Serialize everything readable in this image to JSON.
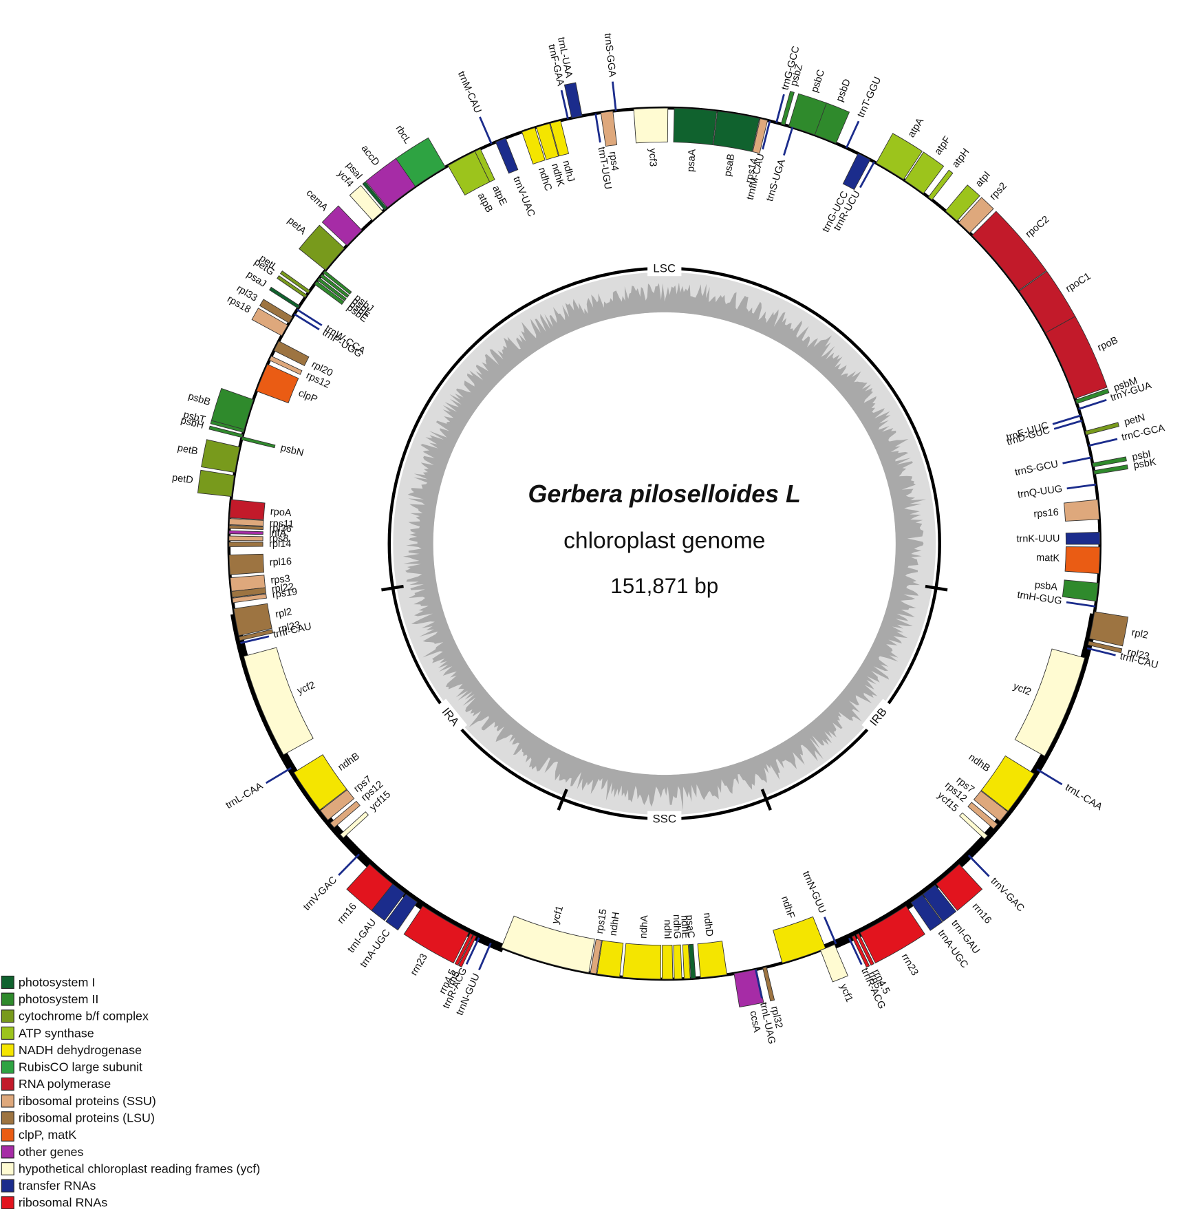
{
  "title": {
    "organism": "Gerbera piloselloides L",
    "description": "chloroplast genome",
    "length": "151,871 bp"
  },
  "regions": [
    "LSC",
    "IRA",
    "SSC",
    "IRB"
  ],
  "legend": [
    {
      "label": "photosystem I",
      "color": "#10622e"
    },
    {
      "label": "photosystem II",
      "color": "#2f8a2c"
    },
    {
      "label": "cytochrome b/f complex",
      "color": "#789a1c"
    },
    {
      "label": "ATP synthase",
      "color": "#9cc41c"
    },
    {
      "label": "NADH dehydrogenase",
      "color": "#f4e500"
    },
    {
      "label": "RubisCO large subunit",
      "color": "#2ea342"
    },
    {
      "label": "RNA polymerase",
      "color": "#c21a2a"
    },
    {
      "label": "ribosomal proteins (SSU)",
      "color": "#dea87c"
    },
    {
      "label": "ribosomal proteins (LSU)",
      "color": "#9d7441"
    },
    {
      "label": "clpP, matK",
      "color": "#ea5c14"
    },
    {
      "label": "other genes",
      "color": "#a62ca6"
    },
    {
      "label": "hypothetical chloroplast reading frames (ycf)",
      "color": "#fffbd2"
    },
    {
      "label": "transfer RNAs",
      "color": "#1b2c8c"
    },
    {
      "label": "ribosomal RNAs",
      "color": "#e2141e"
    }
  ],
  "genes": [
    {
      "name": "trnH-GUG",
      "group": 12
    },
    {
      "name": "psbA",
      "group": 1
    },
    {
      "name": "matK",
      "group": 9
    },
    {
      "name": "trnK-UUU",
      "group": 12
    },
    {
      "name": "rps16",
      "group": 7
    },
    {
      "name": "trnQ-UUG",
      "group": 12
    },
    {
      "name": "psbK",
      "group": 1
    },
    {
      "name": "psbI",
      "group": 1
    },
    {
      "name": "trnS-GCU",
      "group": 12
    },
    {
      "name": "trnC-GCA",
      "group": 12
    },
    {
      "name": "petN",
      "group": 2
    },
    {
      "name": "trnD-GUC",
      "group": 12
    },
    {
      "name": "trnE-UUC",
      "group": 12
    },
    {
      "name": "trnY-GUA",
      "group": 12
    },
    {
      "name": "psbM",
      "group": 1
    },
    {
      "name": "rpoB",
      "group": 6
    },
    {
      "name": "rpoC1",
      "group": 6
    },
    {
      "name": "rpoC2",
      "group": 6
    },
    {
      "name": "rps2",
      "group": 7
    },
    {
      "name": "atpI",
      "group": 3
    },
    {
      "name": "atpH",
      "group": 3
    },
    {
      "name": "atpF",
      "group": 3
    },
    {
      "name": "atpA",
      "group": 3
    },
    {
      "name": "trnR-UCU",
      "group": 12
    },
    {
      "name": "trnG-UCC",
      "group": 12
    },
    {
      "name": "trnT-GGU",
      "group": 12
    },
    {
      "name": "psbD",
      "group": 1
    },
    {
      "name": "psbC",
      "group": 1
    },
    {
      "name": "trnS-UGA",
      "group": 12
    },
    {
      "name": "psbZ",
      "group": 1
    },
    {
      "name": "trnG-GCC",
      "group": 12
    },
    {
      "name": "trnfM-CAU",
      "group": 12
    },
    {
      "name": "rps14",
      "group": 7
    },
    {
      "name": "psaB",
      "group": 0
    },
    {
      "name": "psaA",
      "group": 0
    },
    {
      "name": "ycf3",
      "group": 11
    },
    {
      "name": "rps4",
      "group": 7
    },
    {
      "name": "trnT-UGU",
      "group": 12
    },
    {
      "name": "trnS-GGA",
      "group": 12
    },
    {
      "name": "trnL-UAA",
      "group": 12
    },
    {
      "name": "trnF-GAA",
      "group": 12
    },
    {
      "name": "ndhJ",
      "group": 4
    },
    {
      "name": "ndhK",
      "group": 4
    },
    {
      "name": "ndhC",
      "group": 4
    },
    {
      "name": "trnV-UAC",
      "group": 12
    },
    {
      "name": "trnM-CAU",
      "group": 12
    },
    {
      "name": "atpE",
      "group": 3
    },
    {
      "name": "atpB",
      "group": 3
    },
    {
      "name": "rbcL",
      "group": 5
    },
    {
      "name": "accD",
      "group": 10
    },
    {
      "name": "psaI",
      "group": 0
    },
    {
      "name": "ycf4",
      "group": 11
    },
    {
      "name": "cemA",
      "group": 10
    },
    {
      "name": "petA",
      "group": 2
    },
    {
      "name": "psbJ",
      "group": 1
    },
    {
      "name": "psbL",
      "group": 1
    },
    {
      "name": "psbF",
      "group": 1
    },
    {
      "name": "psbE",
      "group": 1
    },
    {
      "name": "petL",
      "group": 2
    },
    {
      "name": "petG",
      "group": 2
    },
    {
      "name": "trnW-CCA",
      "group": 12
    },
    {
      "name": "trnP-UGG",
      "group": 12
    },
    {
      "name": "psaJ",
      "group": 0
    },
    {
      "name": "rpl33",
      "group": 8
    },
    {
      "name": "rps18",
      "group": 7
    },
    {
      "name": "rpl20",
      "group": 8
    },
    {
      "name": "rps12",
      "group": 7
    },
    {
      "name": "clpP",
      "group": 9
    },
    {
      "name": "psbB",
      "group": 1
    },
    {
      "name": "psbT",
      "group": 1
    },
    {
      "name": "psbN",
      "group": 1
    },
    {
      "name": "psbH",
      "group": 1
    },
    {
      "name": "petB",
      "group": 2
    },
    {
      "name": "petD",
      "group": 2
    },
    {
      "name": "rpoA",
      "group": 6
    },
    {
      "name": "rps11",
      "group": 7
    },
    {
      "name": "rpl36",
      "group": 8
    },
    {
      "name": "infA",
      "group": 10
    },
    {
      "name": "rps8",
      "group": 7
    },
    {
      "name": "rpl14",
      "group": 8
    },
    {
      "name": "rpl16",
      "group": 8
    },
    {
      "name": "rps3",
      "group": 7
    },
    {
      "name": "rpl22",
      "group": 8
    },
    {
      "name": "rps19",
      "group": 7
    },
    {
      "name": "rpl2",
      "group": 8
    },
    {
      "name": "rpl23",
      "group": 8
    },
    {
      "name": "trnI-CAU",
      "group": 12
    },
    {
      "name": "ycf2",
      "group": 11
    },
    {
      "name": "trnL-CAA",
      "group": 12
    },
    {
      "name": "ndhB",
      "group": 4
    },
    {
      "name": "rps7",
      "group": 7
    },
    {
      "name": "rps12",
      "group": 7
    },
    {
      "name": "ycf15",
      "group": 11
    },
    {
      "name": "trnV-GAC",
      "group": 12
    },
    {
      "name": "rrn16",
      "group": 13
    },
    {
      "name": "trnI-GAU",
      "group": 12
    },
    {
      "name": "trnA-UGC",
      "group": 12
    },
    {
      "name": "rrn23",
      "group": 13
    },
    {
      "name": "rrn4.5",
      "group": 13
    },
    {
      "name": "rrn5",
      "group": 13
    },
    {
      "name": "trnR-ACG",
      "group": 12
    },
    {
      "name": "trnN-GUU",
      "group": 12
    },
    {
      "name": "ycf1",
      "group": 11
    },
    {
      "name": "rps15",
      "group": 7
    },
    {
      "name": "ndhH",
      "group": 4
    },
    {
      "name": "ndhA",
      "group": 4
    },
    {
      "name": "ndhI",
      "group": 4
    },
    {
      "name": "ndhG",
      "group": 4
    },
    {
      "name": "ndhE",
      "group": 4
    },
    {
      "name": "psaC",
      "group": 0
    },
    {
      "name": "ndhD",
      "group": 4
    },
    {
      "name": "ccsA",
      "group": 10
    },
    {
      "name": "trnL-UAG",
      "group": 12
    },
    {
      "name": "rpl32",
      "group": 8
    },
    {
      "name": "ndhF",
      "group": 4
    },
    {
      "name": "ycf1",
      "group": 11
    },
    {
      "name": "trnN-GUU",
      "group": 12
    },
    {
      "name": "trnR-ACG",
      "group": 12
    },
    {
      "name": "rrn5",
      "group": 13
    },
    {
      "name": "rrn4.5",
      "group": 13
    },
    {
      "name": "rrn23",
      "group": 13
    },
    {
      "name": "trnA-UGC",
      "group": 12
    },
    {
      "name": "trnI-GAU",
      "group": 12
    },
    {
      "name": "rrn16",
      "group": 13
    },
    {
      "name": "trnV-GAC",
      "group": 12
    },
    {
      "name": "ycf15",
      "group": 11
    },
    {
      "name": "rps12",
      "group": 7
    },
    {
      "name": "rps7",
      "group": 7
    },
    {
      "name": "ndhB",
      "group": 4
    },
    {
      "name": "trnL-CAA",
      "group": 12
    },
    {
      "name": "ycf2",
      "group": 11
    },
    {
      "name": "trnI-CAU",
      "group": 12
    },
    {
      "name": "rpl23",
      "group": 8
    },
    {
      "name": "rpl2",
      "group": 8
    }
  ]
}
